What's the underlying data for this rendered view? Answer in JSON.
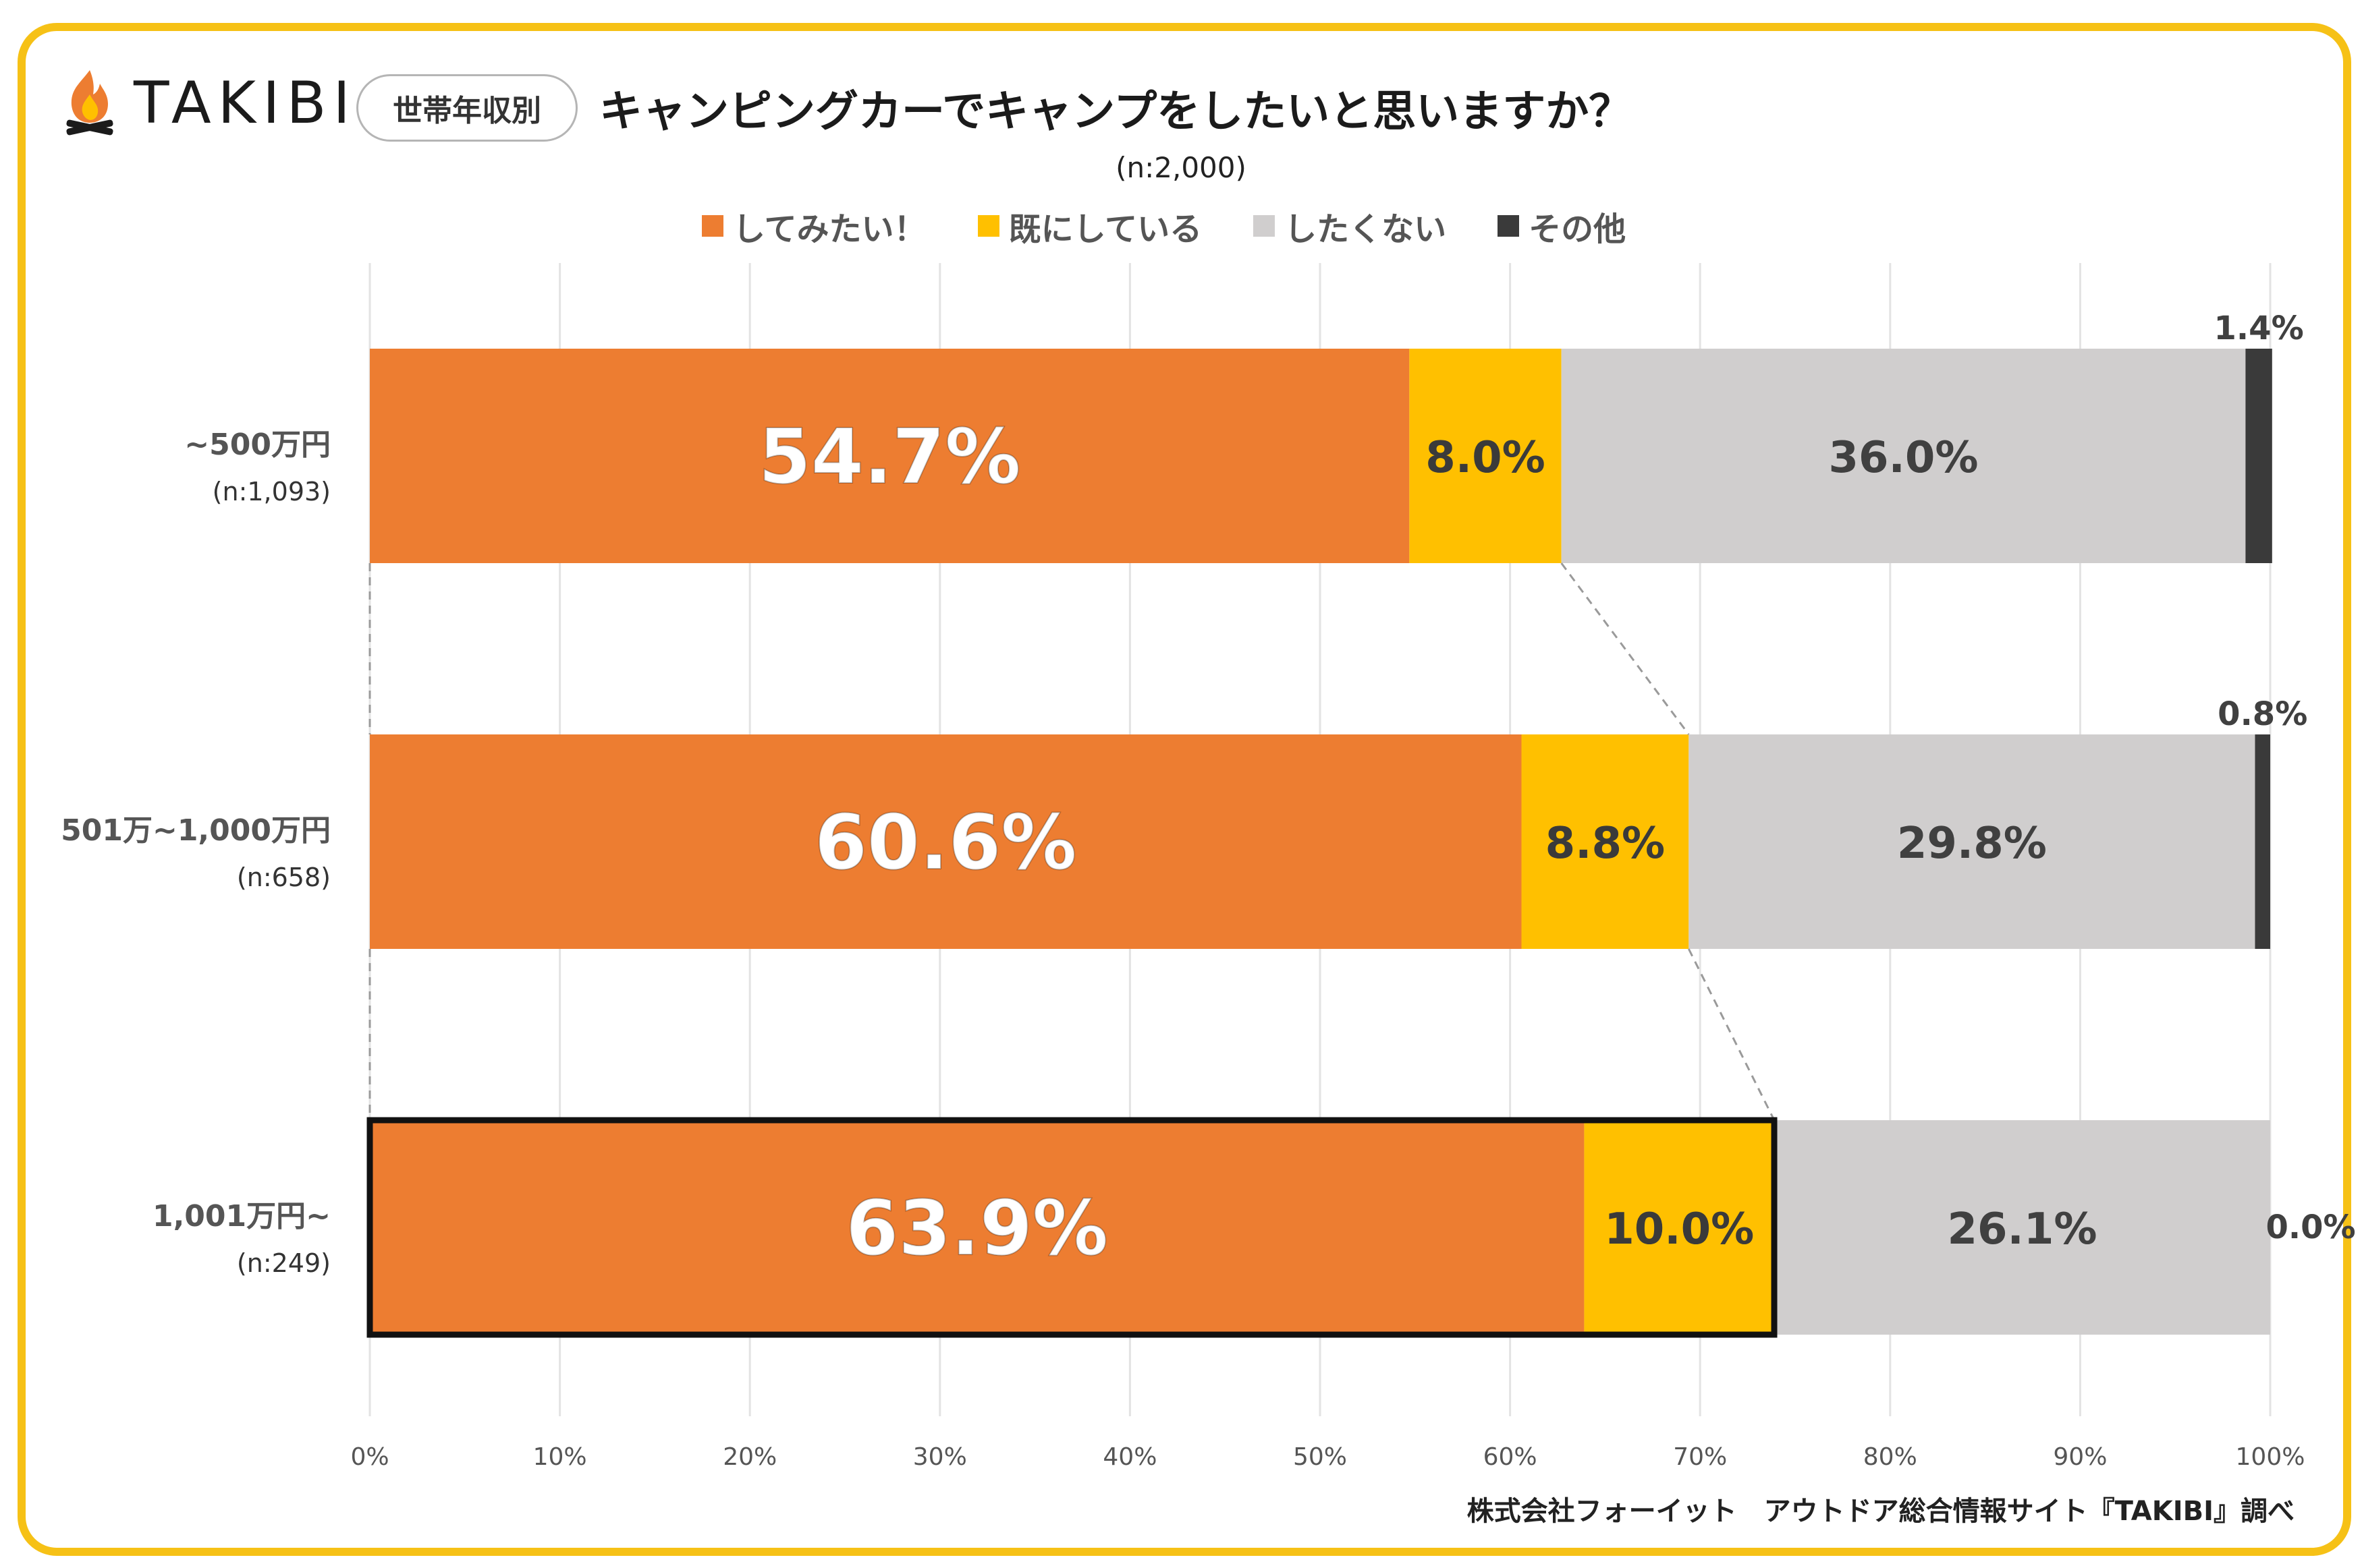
{
  "brand": {
    "name": "TAKIBI",
    "icon": "campfire-icon"
  },
  "badge": "世帯年収別",
  "title": "キャンピングカーでキャンプをしたいと思いますか？",
  "subtitle": "(n:2,000)",
  "footer": "株式会社フォーイット　アウトドア総合情報サイト『TAKIBI』調べ",
  "colors": {
    "want": "#ED7D31",
    "already": "#FFC000",
    "not_want": "#D0CECE",
    "other": "#3A3A3A",
    "frame": "#F6C116"
  },
  "chart_data": {
    "type": "bar",
    "orientation": "horizontal",
    "stacked": true,
    "percent": true,
    "title": "キャンピングカーでキャンプをしたいと思いますか？",
    "xlim": [
      0,
      100
    ],
    "x_ticks": [
      "0%",
      "10%",
      "20%",
      "30%",
      "40%",
      "50%",
      "60%",
      "70%",
      "80%",
      "90%",
      "100%"
    ],
    "grid": true,
    "legend_position": "top",
    "categories": [
      "~500万円",
      "501万~1,000万円",
      "1,001万円~"
    ],
    "category_n": [
      "(n:1,093)",
      "(n:658)",
      "(n:249)"
    ],
    "series": [
      {
        "name": "してみたい！",
        "values": [
          54.7,
          60.6,
          63.9
        ],
        "labels": [
          "54.7%",
          "60.6%",
          "63.9%"
        ]
      },
      {
        "name": "既にしている",
        "values": [
          8.0,
          8.8,
          10.0
        ],
        "labels": [
          "8.0%",
          "8.8%",
          "10.0%"
        ]
      },
      {
        "name": "したくない",
        "values": [
          36.0,
          29.8,
          26.1
        ],
        "labels": [
          "36.0%",
          "29.8%",
          "26.1%"
        ]
      },
      {
        "name": "その他",
        "values": [
          1.4,
          0.8,
          0.0
        ],
        "labels": [
          "1.4%",
          "0.8%",
          "0.0%"
        ]
      }
    ],
    "highlight": {
      "category": "1,001万円~",
      "series": [
        "してみたい！",
        "既にしている"
      ]
    }
  }
}
